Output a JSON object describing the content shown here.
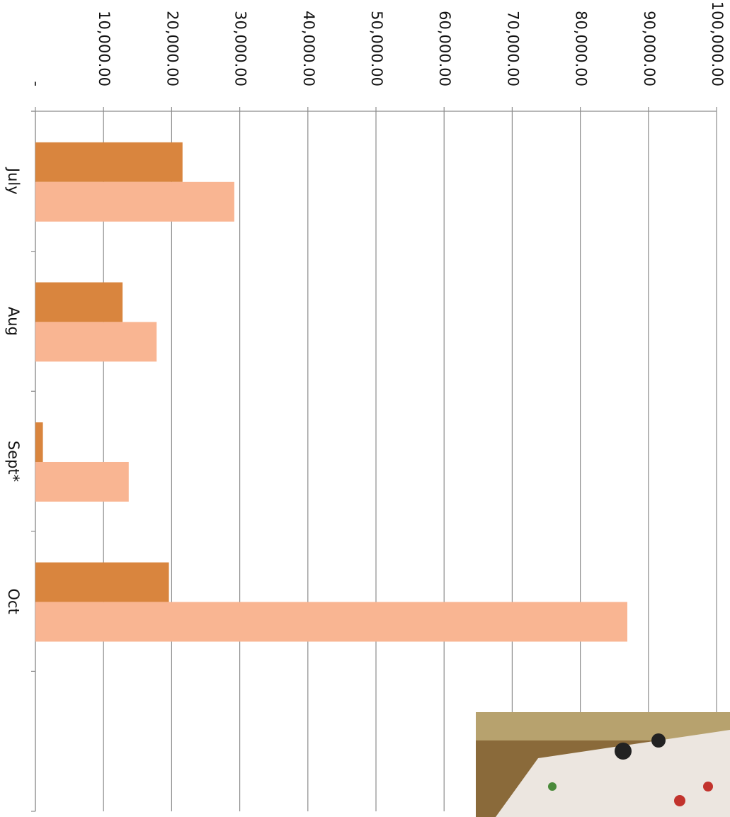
{
  "chart_data": {
    "type": "bar",
    "orientation": "horizontal",
    "categories": [
      "July",
      "Aug",
      "Sept*",
      "Oct",
      null
    ],
    "series": [
      {
        "color": "#d9853e",
        "values": [
          21600,
          12800,
          1100,
          19600,
          null
        ]
      },
      {
        "color": "#f9b592",
        "values": [
          29200,
          17800,
          13700,
          86900,
          null
        ]
      }
    ],
    "xlim": [
      0,
      100000
    ],
    "xticks": [
      {
        "value": 0,
        "label": "-"
      },
      {
        "value": 10000,
        "label": "10,000.00"
      },
      {
        "value": 20000,
        "label": "20,000.00"
      },
      {
        "value": 30000,
        "label": "30,000.00"
      },
      {
        "value": 40000,
        "label": "40,000.00"
      },
      {
        "value": 50000,
        "label": "50,000.00"
      },
      {
        "value": 60000,
        "label": "60,000.00"
      },
      {
        "value": 70000,
        "label": "70,000.00"
      },
      {
        "value": 80000,
        "label": "80,000.00"
      },
      {
        "value": 90000,
        "label": "90,000.00"
      },
      {
        "value": 100000,
        "label": "100,000.00"
      }
    ],
    "grid": true
  }
}
